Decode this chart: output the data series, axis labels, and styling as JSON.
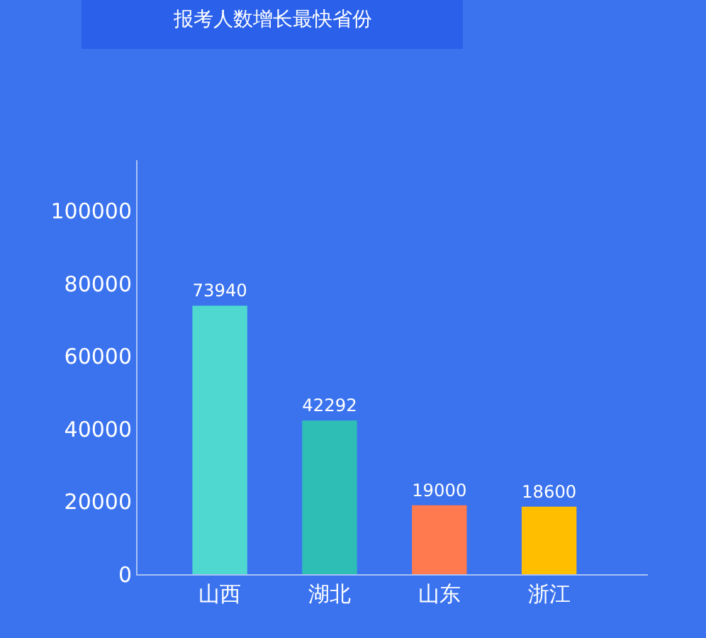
{
  "chart_data": {
    "type": "bar",
    "title": "报考人数增长最快省份",
    "categories": [
      "山西",
      "湖北",
      "山东",
      "浙江"
    ],
    "values": [
      73940,
      42292,
      19000,
      18600
    ],
    "colors": [
      "#4fd8d0",
      "#2fbeb6",
      "#ff7a4f",
      "#ffbf00"
    ],
    "ylim": [
      0,
      114000
    ],
    "yticks": [
      0,
      20000,
      40000,
      60000,
      80000,
      100000
    ],
    "data_labels": true,
    "grid": false,
    "legend": false
  }
}
